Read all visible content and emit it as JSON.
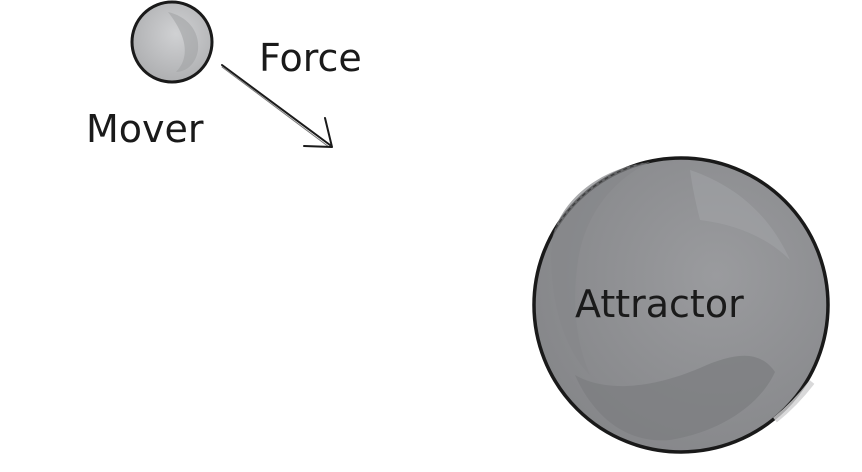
{
  "diagram": {
    "labels": {
      "force": "Force",
      "mover": "Mover",
      "attractor": "Attractor"
    },
    "colors": {
      "background": "#ffffff",
      "outline": "#1a1a1a",
      "mover_fill": "#b9babc",
      "attractor_fill": "#8e8f92",
      "text": "#1a1a1a"
    },
    "elements": {
      "mover": "circle",
      "attractor": "circle",
      "force": "arrow"
    }
  }
}
